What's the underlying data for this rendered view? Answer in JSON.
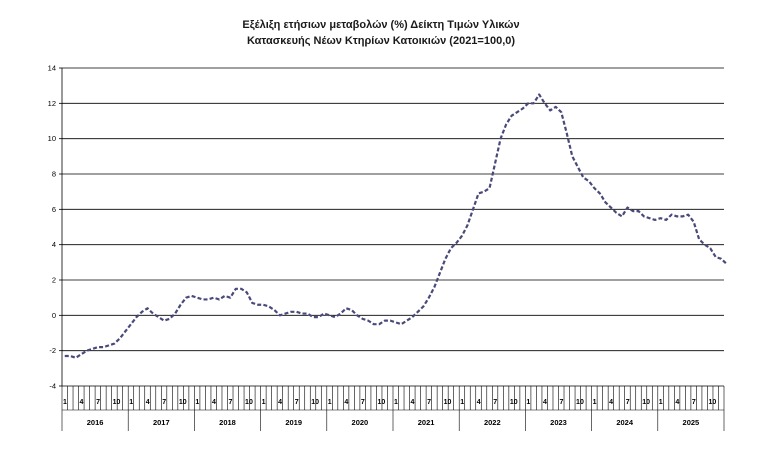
{
  "chart_data": {
    "type": "line",
    "title": [
      "Εξέλιξη ετήσιων μεταβολών (%) Δείκτη Τιμών Υλικών",
      "Κατασκευής Νέων Κτηρίων Κατοικιών (2021=100,0)"
    ],
    "xlabel": "",
    "ylabel": "",
    "ylim": [
      -4,
      14
    ],
    "yticks": [
      "-4",
      "-2",
      "0",
      "2",
      "4",
      "6",
      "8",
      "10",
      "12",
      "14"
    ],
    "grid": true,
    "legend": "none",
    "line_color": "#4a4a7a",
    "line_style": "dashed",
    "month_labels": [
      "1",
      "4",
      "7",
      "10"
    ],
    "years": [
      "2016",
      "2017",
      "2018",
      "2019",
      "2020",
      "2021",
      "2022",
      "2023",
      "2024",
      "2025"
    ],
    "series": [
      {
        "values": [
          -2.3,
          -2.3,
          -2.4,
          -2.2,
          -2.0,
          -1.9,
          -1.8,
          -1.8,
          -1.7,
          -1.6,
          -1.3,
          -0.9,
          -0.5,
          -0.1,
          0.2,
          0.4,
          0.1,
          -0.1,
          -0.3,
          -0.2,
          0.1,
          0.6,
          1.0,
          1.1,
          1.0,
          0.9,
          0.9,
          1.0,
          0.9,
          1.1,
          1.0,
          1.5,
          1.5,
          1.3,
          0.7,
          0.6,
          0.6,
          0.5,
          0.3,
          0.0,
          0.1,
          0.2,
          0.2,
          0.1,
          0.1,
          -0.1,
          -0.1,
          0.1,
          0.0,
          -0.1,
          0.1,
          0.4,
          0.3,
          0.0,
          -0.2,
          -0.3,
          -0.5,
          -0.5,
          -0.3,
          -0.3,
          -0.4,
          -0.5,
          -0.3,
          -0.1,
          0.2,
          0.5,
          1.0,
          1.6,
          2.4,
          3.2,
          3.8,
          4.1,
          4.5,
          5.1,
          6.0,
          6.9,
          7.0,
          7.2,
          8.6,
          10.0,
          10.8,
          11.3,
          11.5,
          11.7,
          12.0,
          12.0,
          12.5,
          12.0,
          11.6,
          11.8,
          11.5,
          10.3,
          9.0,
          8.4,
          7.8,
          7.6,
          7.2,
          6.9,
          6.4,
          6.1,
          5.8,
          5.6,
          6.1,
          5.9,
          5.9,
          5.6,
          5.5,
          5.4,
          5.5,
          5.4,
          5.7,
          5.6,
          5.6,
          5.7,
          5.3,
          4.3,
          4.0,
          3.8,
          3.3,
          3.2,
          2.9
        ]
      }
    ]
  }
}
